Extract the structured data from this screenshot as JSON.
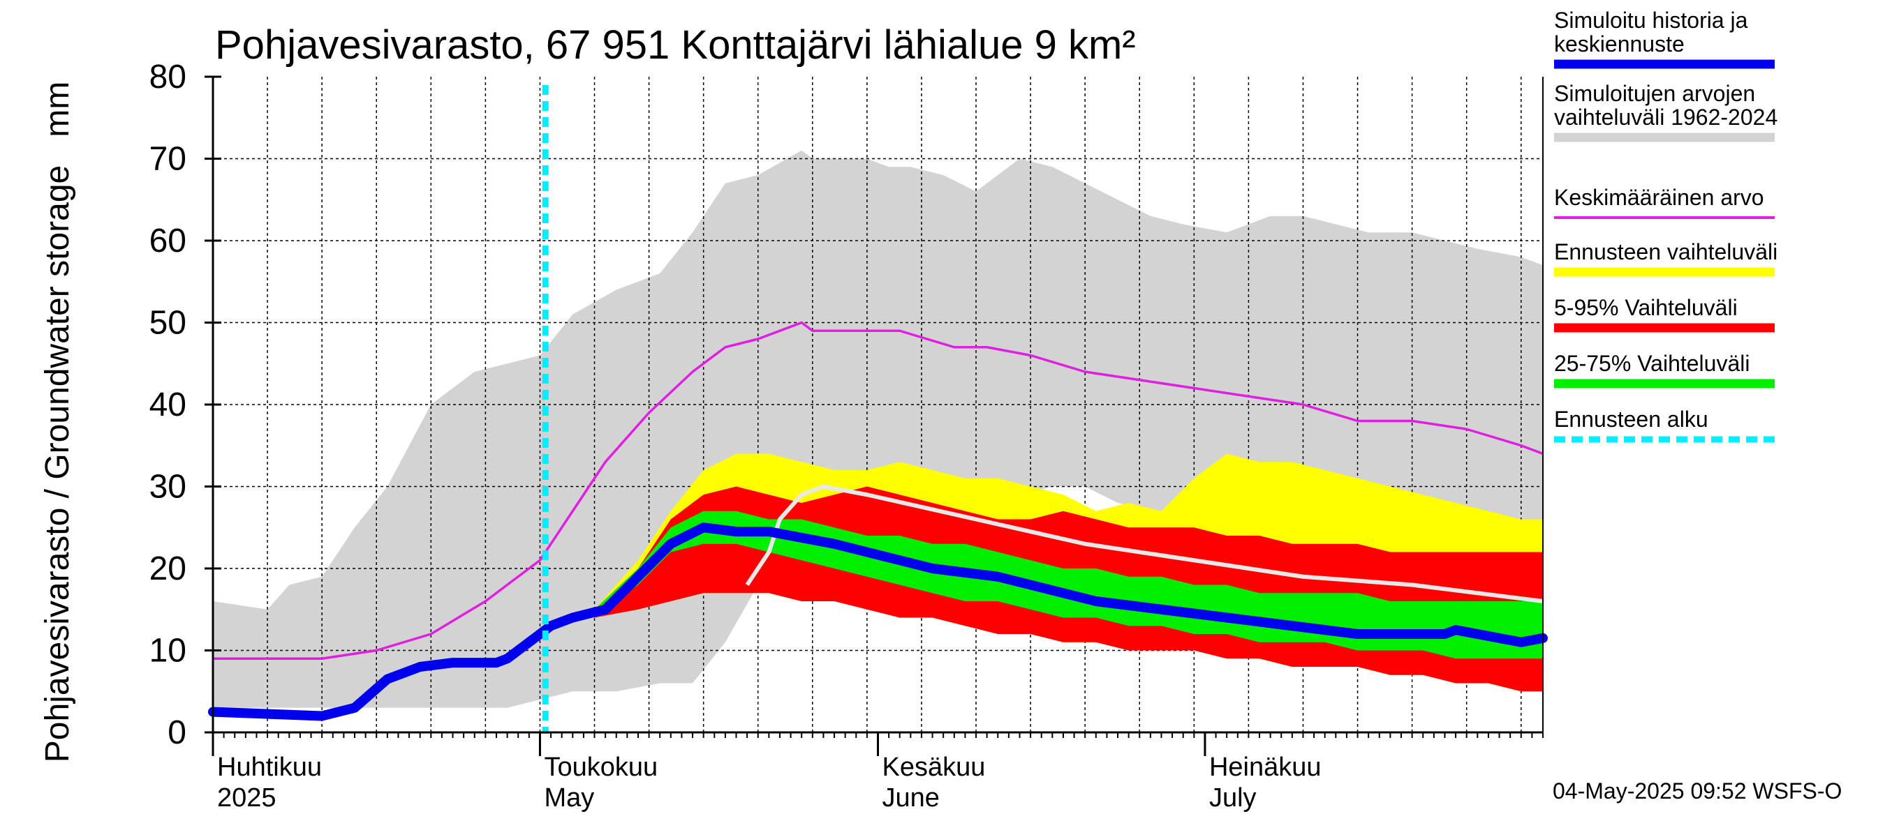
{
  "chart_data": {
    "type": "area",
    "title": "Pohjavesivarasto, 67 951 Konttajärvi lähialue 9 km²",
    "ylabel": "Pohjavesivarasto / Groundwater storage   mm",
    "ylim": [
      0,
      80
    ],
    "yticks": [
      "0",
      "10",
      "20",
      "30",
      "40",
      "50",
      "60",
      "70",
      "80"
    ],
    "x_axis": {
      "start_day": 0,
      "end_day": 122,
      "note": "day 0 = 1 April 2025"
    },
    "month_labels": [
      {
        "day": 0,
        "fi": "Huhtikuu",
        "en": "2025"
      },
      {
        "day": 30,
        "fi": "Toukokuu",
        "en": "May"
      },
      {
        "day": 61,
        "fi": "Kesäkuu",
        "en": "June"
      },
      {
        "day": 91,
        "fi": "Heinäkuu",
        "en": "July"
      }
    ],
    "forecast_start_day": 30.5,
    "legend": [
      {
        "label": [
          "Simuloitu historia ja",
          "keskiennuste"
        ],
        "color": "#0000ee",
        "kind": "thick"
      },
      {
        "label": [
          "Simuloitujen arvojen",
          "vaihteluväli 1962-2024"
        ],
        "color": "#d3d3d3",
        "kind": "thick"
      },
      {
        "label": [
          "Keskimääräinen arvo"
        ],
        "color": "#e020e0",
        "kind": "thin"
      },
      {
        "label": [
          "Ennusteen vaihteluväli"
        ],
        "color": "#ffff00",
        "kind": "thick"
      },
      {
        "label": [
          "5-95% Vaihteluväli"
        ],
        "color": "#ff0000",
        "kind": "thick"
      },
      {
        "label": [
          "25-75% Vaihteluväli"
        ],
        "color": "#00ee00",
        "kind": "thick"
      },
      {
        "label": [
          "Ennusteen alku"
        ],
        "color": "#00eeff",
        "kind": "dashed"
      }
    ],
    "series": {
      "hist_range": {
        "x": [
          0,
          5,
          7,
          10,
          13,
          16,
          20,
          24,
          27,
          30,
          33,
          37,
          41,
          44,
          47,
          50,
          54,
          55,
          57,
          60,
          62,
          64,
          67,
          70,
          74,
          77,
          80,
          83,
          86,
          89,
          93,
          97,
          100,
          103,
          106,
          110,
          113,
          116,
          120,
          122
        ],
        "low": [
          3,
          3,
          3,
          3,
          3,
          3,
          3,
          3,
          3,
          4,
          5,
          5,
          6,
          6,
          11,
          18,
          24,
          28,
          30,
          31,
          32,
          31,
          30,
          30,
          29,
          30,
          30,
          28,
          27,
          26,
          27,
          28,
          28,
          27,
          25,
          24,
          22,
          21,
          20,
          19
        ],
        "high": [
          16,
          15,
          18,
          19,
          25,
          30,
          40,
          44,
          45,
          46,
          51,
          54,
          56,
          61,
          67,
          68,
          71,
          70,
          70,
          70,
          69,
          69,
          68,
          66,
          70,
          69,
          67,
          65,
          63,
          62,
          61,
          63,
          63,
          62,
          61,
          61,
          60,
          59,
          58,
          57
        ]
      },
      "mean": {
        "x": [
          0,
          5,
          10,
          15,
          20,
          25,
          30,
          33,
          36,
          40,
          44,
          47,
          50,
          52,
          54,
          55,
          58,
          63,
          68,
          71,
          75,
          80,
          85,
          90,
          95,
          100,
          105,
          110,
          115,
          120,
          122
        ],
        "values": [
          9,
          9,
          9,
          10,
          12,
          16,
          21,
          27,
          33,
          39,
          44,
          47,
          48,
          49,
          50,
          49,
          49,
          49,
          47,
          47,
          46,
          44,
          43,
          42,
          41,
          40,
          38,
          38,
          37,
          35,
          34
        ]
      },
      "forecast_yellow": {
        "x": [
          35,
          39,
          42,
          45,
          48,
          51,
          54,
          57,
          60,
          63,
          66,
          69,
          72,
          75,
          78,
          81,
          84,
          87,
          90,
          93,
          96,
          99,
          102,
          105,
          108,
          111,
          114,
          117,
          120,
          122
        ],
        "low": [
          14,
          15,
          16,
          17,
          17,
          17,
          16,
          16,
          15,
          14,
          14,
          13,
          12,
          12,
          11,
          11,
          10,
          10,
          10,
          9,
          9,
          8,
          8,
          8,
          7,
          7,
          6,
          6,
          5,
          5
        ],
        "high": [
          15,
          21,
          27,
          32,
          34,
          34,
          33,
          32,
          32,
          33,
          32,
          31,
          31,
          30,
          29,
          27,
          28,
          27,
          31,
          34,
          33,
          33,
          32,
          31,
          30,
          29,
          28,
          27,
          26,
          26
        ]
      },
      "forecast_red": {
        "x": [
          35,
          39,
          42,
          45,
          48,
          51,
          54,
          57,
          60,
          63,
          66,
          69,
          72,
          75,
          78,
          81,
          84,
          87,
          90,
          93,
          96,
          99,
          102,
          105,
          108,
          111,
          114,
          117,
          120,
          122
        ],
        "low": [
          14,
          15,
          16,
          17,
          17,
          17,
          16,
          16,
          15,
          14,
          14,
          13,
          12,
          12,
          11,
          11,
          10,
          10,
          10,
          9,
          9,
          8,
          8,
          8,
          7,
          7,
          6,
          6,
          5,
          5
        ],
        "high": [
          15,
          20,
          26,
          29,
          30,
          29,
          28,
          29,
          30,
          29,
          28,
          27,
          26,
          26,
          27,
          26,
          25,
          25,
          25,
          24,
          24,
          23,
          23,
          23,
          22,
          22,
          22,
          22,
          22,
          22
        ]
      },
      "forecast_green": {
        "x": [
          35,
          39,
          42,
          45,
          48,
          51,
          54,
          57,
          60,
          63,
          66,
          69,
          72,
          75,
          78,
          81,
          84,
          87,
          90,
          93,
          96,
          99,
          102,
          105,
          108,
          111,
          114,
          117,
          120,
          122
        ],
        "low": [
          14,
          18,
          22,
          23,
          23,
          22,
          21,
          20,
          19,
          18,
          17,
          16,
          16,
          15,
          14,
          14,
          13,
          13,
          12,
          12,
          11,
          11,
          11,
          10,
          10,
          10,
          9,
          9,
          9,
          9
        ],
        "high": [
          15,
          20,
          25,
          27,
          27,
          26,
          26,
          25,
          24,
          24,
          23,
          23,
          22,
          21,
          20,
          20,
          19,
          19,
          18,
          18,
          17,
          17,
          17,
          17,
          16,
          16,
          16,
          16,
          16,
          16
        ]
      },
      "median": {
        "x": [
          0,
          10,
          13,
          16,
          19,
          22,
          26,
          27,
          29,
          31,
          33,
          36,
          39,
          42,
          45,
          48,
          51,
          53,
          55,
          57,
          60,
          63,
          66,
          69,
          72,
          75,
          78,
          81,
          84,
          87,
          90,
          93,
          96,
          99,
          102,
          105,
          108,
          111,
          113,
          114,
          116,
          118,
          120,
          122
        ],
        "values": [
          2.5,
          2,
          3,
          6.5,
          8,
          8.5,
          8.5,
          9,
          11,
          13,
          14,
          15,
          19,
          23,
          25,
          24.5,
          24.5,
          24,
          23.5,
          23,
          22,
          21,
          20,
          19.5,
          19,
          18,
          17,
          16,
          15.5,
          15,
          14.5,
          14,
          13.5,
          13,
          12.5,
          12,
          12,
          12,
          12,
          12.5,
          12,
          11.5,
          11,
          11.5
        ]
      },
      "white_line": {
        "x": [
          49,
          51,
          52,
          54,
          56,
          60,
          70,
          80,
          90,
          100,
          110,
          122
        ],
        "values": [
          18,
          22,
          26,
          29,
          30,
          29,
          26,
          23,
          21,
          19,
          18,
          16
        ]
      }
    },
    "footer": "04-May-2025 09:52 WSFS-O"
  }
}
